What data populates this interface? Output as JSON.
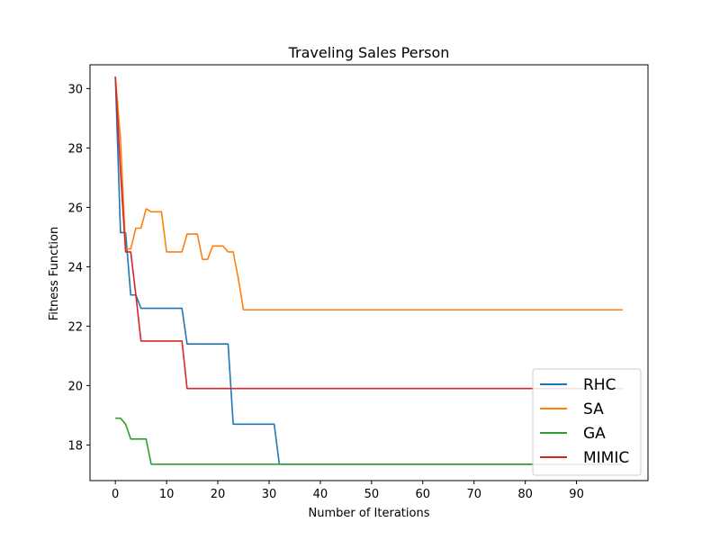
{
  "chart_data": {
    "type": "line",
    "title": "Traveling Sales Person",
    "xlabel": "Number of Iterations",
    "ylabel": "Fitness Function",
    "xlim": [
      -4.95,
      103.95
    ],
    "ylim": [
      16.8,
      30.8
    ],
    "x_ticks": [
      0,
      10,
      20,
      30,
      40,
      50,
      60,
      70,
      80,
      90
    ],
    "y_ticks": [
      18,
      20,
      22,
      24,
      26,
      28,
      30
    ],
    "grid": false,
    "legend_position": "lower-right",
    "series": [
      {
        "name": "RHC",
        "color": "#1f77b4",
        "points": [
          [
            0,
            30.4
          ],
          [
            1,
            25.15
          ],
          [
            2,
            25.15
          ],
          [
            3,
            23.05
          ],
          [
            4,
            23.05
          ],
          [
            5,
            22.6
          ],
          [
            13,
            22.6
          ],
          [
            14,
            21.4
          ],
          [
            22,
            21.4
          ],
          [
            23,
            18.7
          ],
          [
            31,
            18.7
          ],
          [
            32,
            17.35
          ],
          [
            99,
            17.35
          ]
        ]
      },
      {
        "name": "SA",
        "color": "#ff7f0e",
        "points": [
          [
            0,
            30.4
          ],
          [
            1,
            28.3
          ],
          [
            2,
            24.6
          ],
          [
            3,
            24.6
          ],
          [
            4,
            25.3
          ],
          [
            5,
            25.3
          ],
          [
            6,
            25.95
          ],
          [
            7,
            25.85
          ],
          [
            9,
            25.85
          ],
          [
            10,
            24.5
          ],
          [
            13,
            24.5
          ],
          [
            14,
            25.1
          ],
          [
            16,
            25.1
          ],
          [
            17,
            24.25
          ],
          [
            18,
            24.25
          ],
          [
            19,
            24.7
          ],
          [
            21,
            24.7
          ],
          [
            22,
            24.5
          ],
          [
            23,
            24.5
          ],
          [
            24,
            23.6
          ],
          [
            25,
            22.55
          ],
          [
            99,
            22.55
          ]
        ]
      },
      {
        "name": "GA",
        "color": "#2ca02c",
        "points": [
          [
            0,
            18.9
          ],
          [
            1,
            18.9
          ],
          [
            2,
            18.7
          ],
          [
            3,
            18.2
          ],
          [
            6,
            18.2
          ],
          [
            7,
            17.35
          ],
          [
            99,
            17.35
          ]
        ]
      },
      {
        "name": "MIMIC",
        "color": "#d62728",
        "points": [
          [
            0,
            30.4
          ],
          [
            1,
            27.2
          ],
          [
            2,
            24.5
          ],
          [
            3,
            24.5
          ],
          [
            4,
            23.05
          ],
          [
            5,
            21.5
          ],
          [
            13,
            21.5
          ],
          [
            14,
            19.9
          ],
          [
            99,
            19.9
          ]
        ]
      }
    ]
  }
}
